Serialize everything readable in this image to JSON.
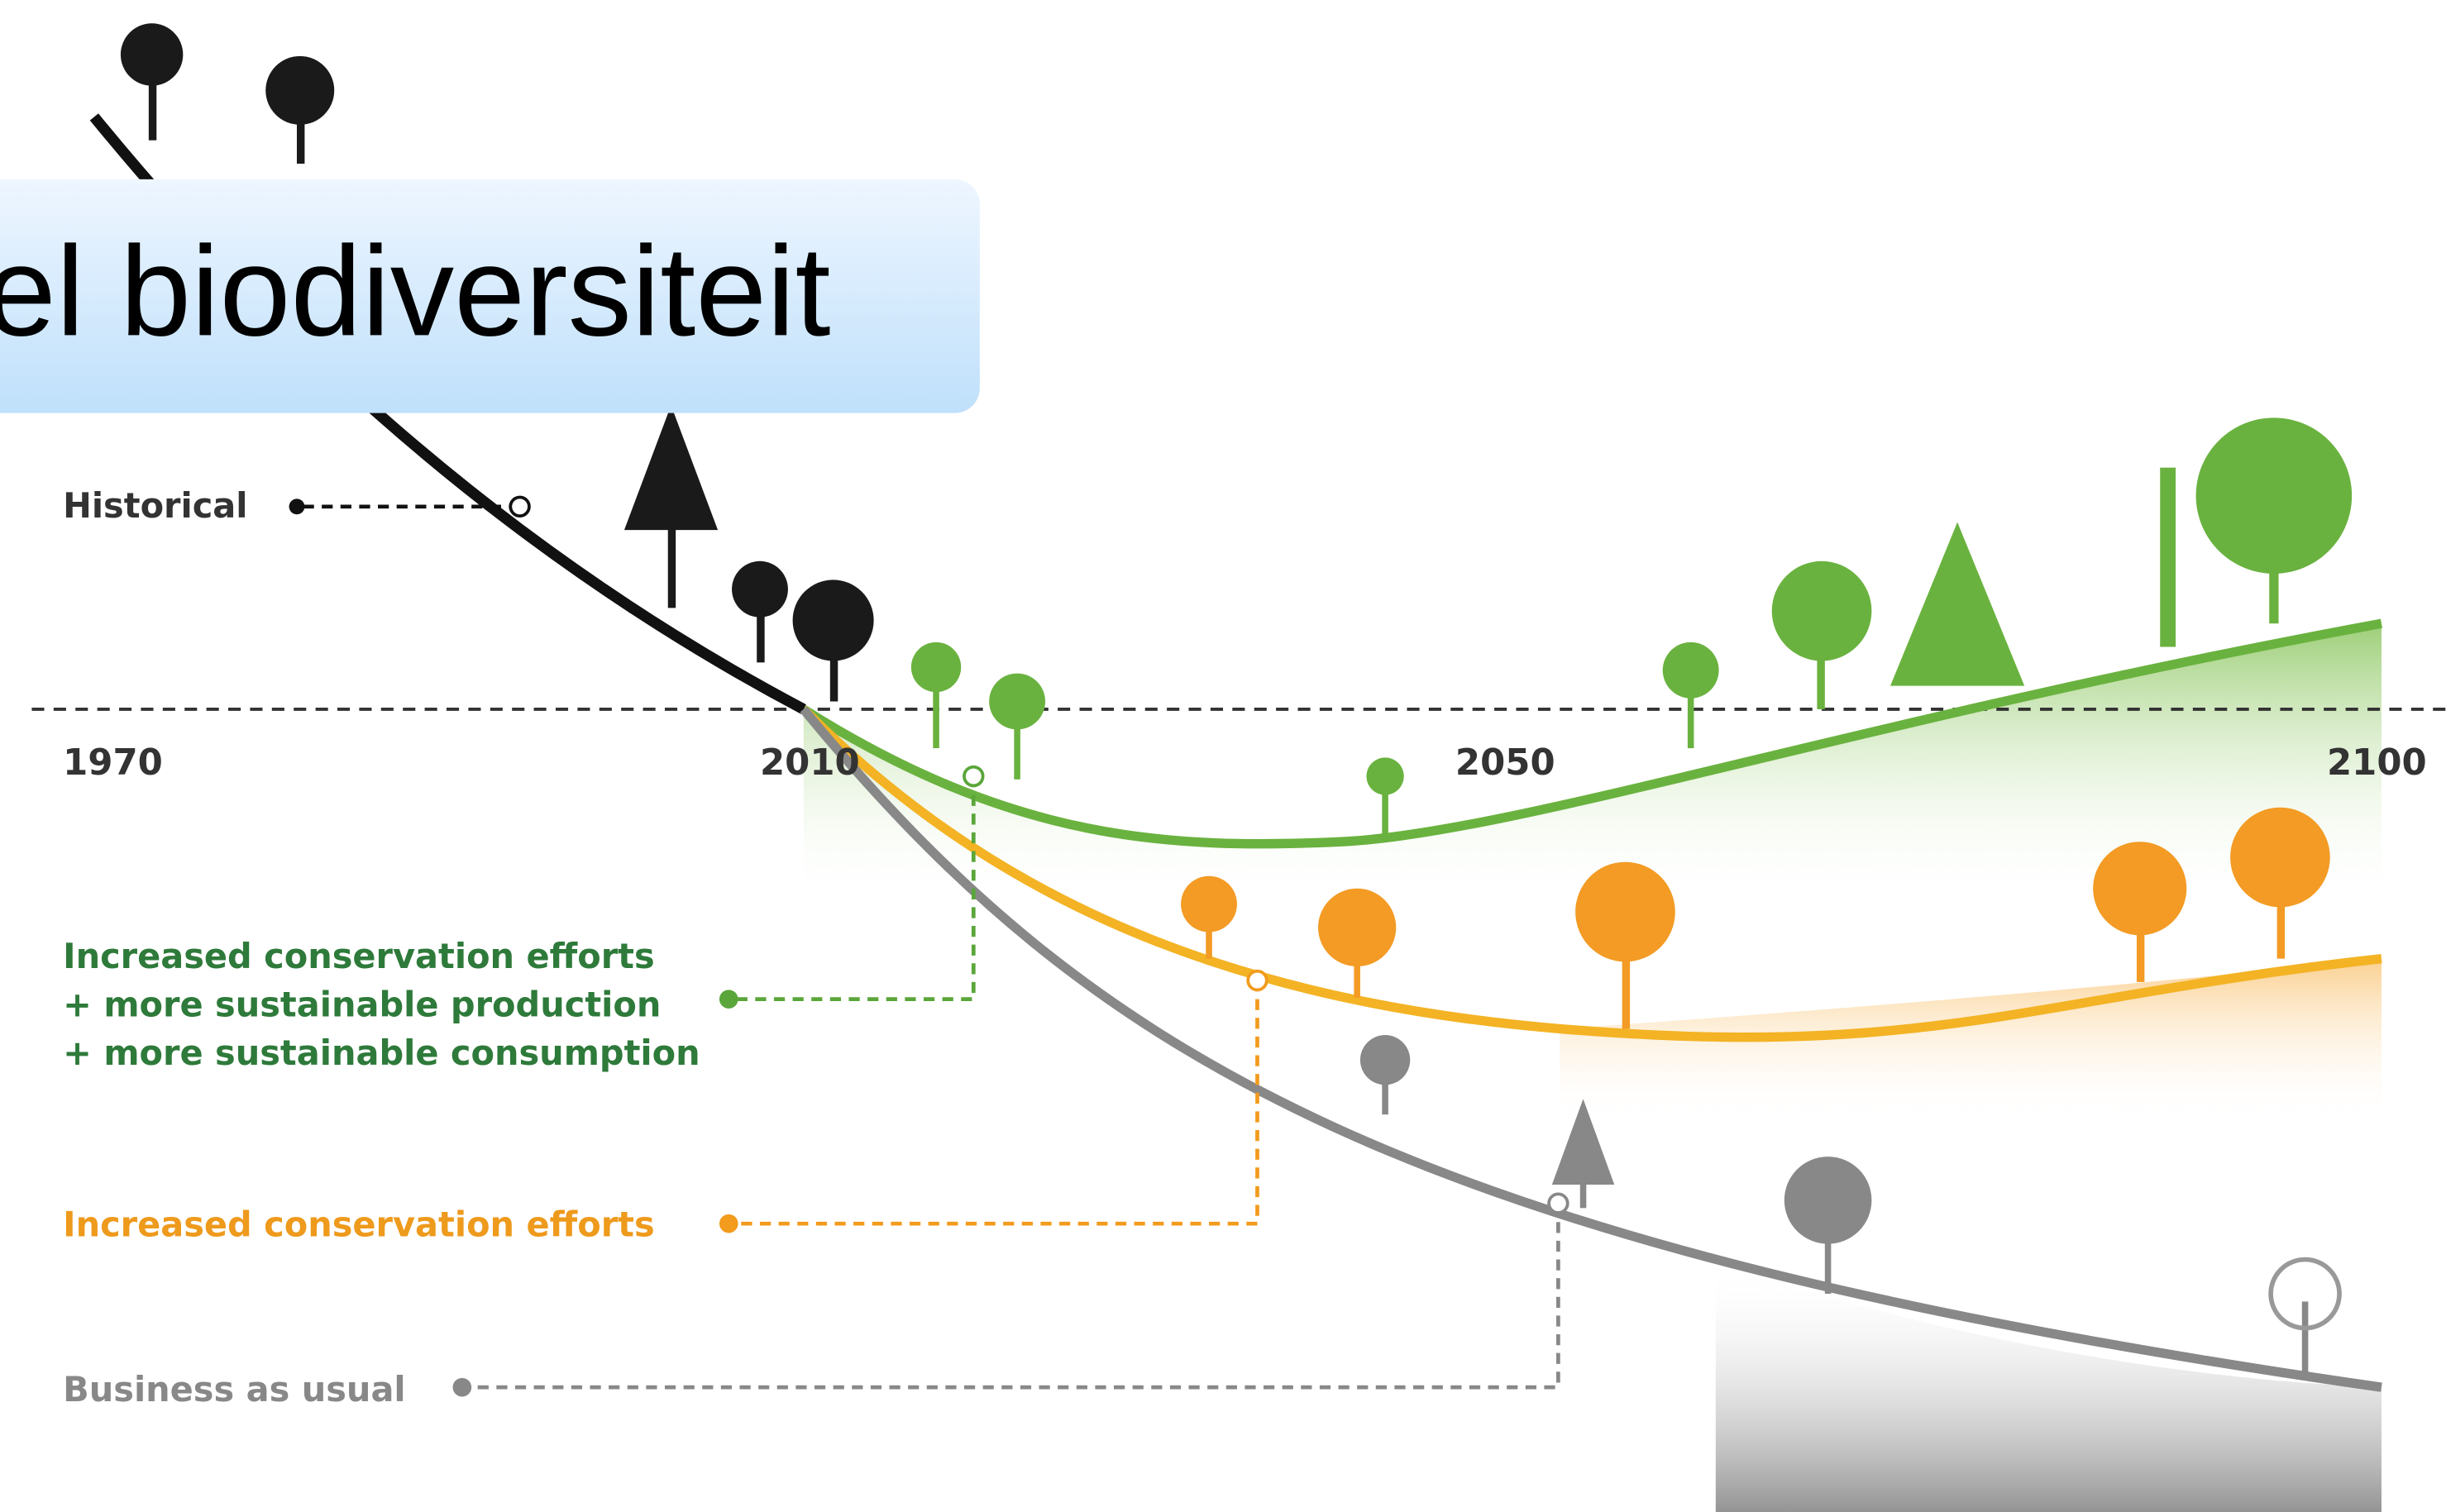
{
  "banner": {
    "text": "el biodiversiteit"
  },
  "timeline": {
    "years": [
      "1970",
      "2010",
      "2050",
      "2100"
    ]
  },
  "scenarios": [
    {
      "lines": [
        "Historical"
      ]
    },
    {
      "lines": [
        "Increased conservation efforts",
        "+ more sustainable production",
        "+ more sustainable consumption"
      ]
    },
    {
      "lines": [
        "Increased conservation efforts"
      ]
    },
    {
      "lines": [
        "Business as usual"
      ]
    }
  ]
}
